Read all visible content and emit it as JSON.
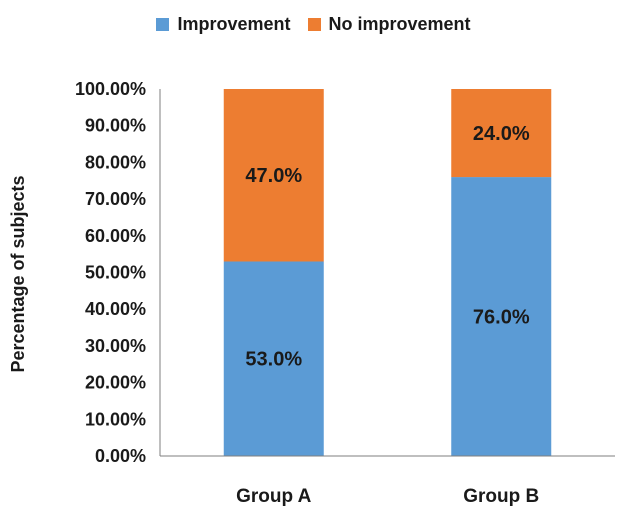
{
  "chart_data": {
    "type": "bar",
    "stacked": true,
    "categories": [
      "Group A",
      "Group B"
    ],
    "series": [
      {
        "name": "Improvement",
        "values": [
          53.0,
          76.0
        ],
        "labels": [
          "53.0%",
          "76.0%"
        ],
        "color": "#5b9bd5"
      },
      {
        "name": "No improvement",
        "values": [
          47.0,
          24.0
        ],
        "labels": [
          "47.0%",
          "24.0%"
        ],
        "color": "#ed7d31"
      }
    ],
    "ylabel": "Percentage of subjects",
    "xlabel": "",
    "ylim": [
      0,
      100
    ],
    "yticks": [
      "0.00%",
      "10.00%",
      "20.00%",
      "30.00%",
      "40.00%",
      "50.00%",
      "60.00%",
      "70.00%",
      "80.00%",
      "90.00%",
      "100.00%"
    ],
    "legend_position": "top-center",
    "grid": false
  }
}
